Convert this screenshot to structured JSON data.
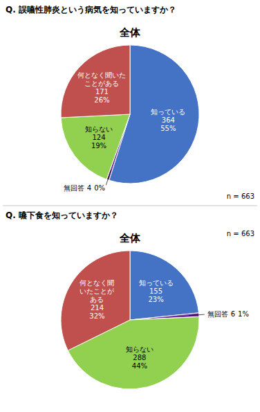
{
  "chart_data": [
    {
      "type": "pie",
      "title": "Q. 誤嚥性肺炎という病気を知っていますか？",
      "subtitle": "全体",
      "annotations": [
        "n = 663"
      ],
      "categories": [
        "知っている",
        "無回答",
        "知らない",
        "何となく聞いた\nことがある"
      ],
      "values": [
        364,
        4,
        124,
        171
      ],
      "percents": [
        55,
        0,
        19,
        26
      ],
      "percent_labels": [
        "55%",
        "0%",
        "19%",
        "26%"
      ],
      "colors": [
        "#4472C4",
        "#7030A0",
        "#92D050",
        "#C0504D"
      ],
      "data_labels": true
    },
    {
      "type": "pie",
      "title": "Q. 嚥下食を知っていますか？",
      "subtitle": "全体",
      "annotations": [
        "n = 663"
      ],
      "categories": [
        "知っている",
        "無回答",
        "知らない",
        "何となく聞\nいたことが\nある"
      ],
      "values": [
        155,
        6,
        288,
        214
      ],
      "percents": [
        23,
        1,
        44,
        32
      ],
      "percent_labels": [
        "23%",
        "1%",
        "44%",
        "32%"
      ],
      "colors": [
        "#4472C4",
        "#7030A0",
        "#92D050",
        "#C0504D"
      ],
      "data_labels": true
    }
  ]
}
